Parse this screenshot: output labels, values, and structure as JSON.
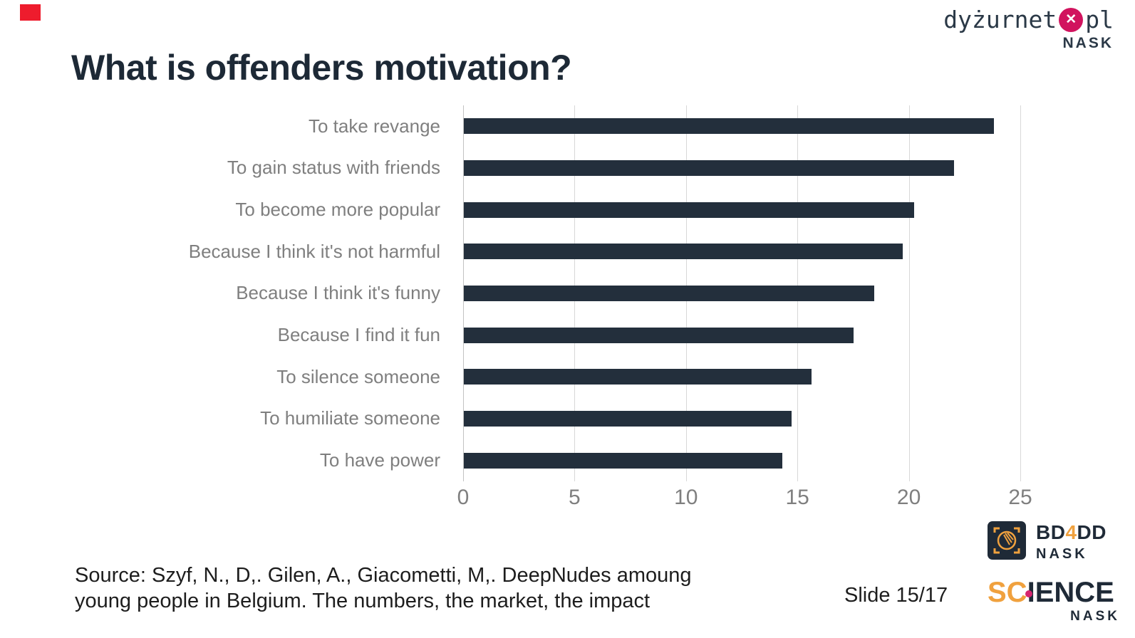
{
  "header": {
    "title": "What is offenders motivation?"
  },
  "logos": {
    "dyzurnet": {
      "name": "dyżurnet",
      "tld": "pl",
      "x_icon": "✕",
      "org": "NASK"
    },
    "bd4dd": {
      "p1": "BD",
      "accent": "4",
      "p2": "DD",
      "org": "NASK"
    },
    "science": {
      "p1": "SC",
      "p2": "IENCE",
      "org": "NASK"
    }
  },
  "chart_data": {
    "type": "bar",
    "orientation": "horizontal",
    "title": "What is offenders motivation?",
    "categories": [
      "To take revange",
      "To gain status with friends",
      "To become more popular",
      "Because I think it's not harmful",
      "Because I think it's funny",
      "Because I find it fun",
      "To silence someone",
      "To humiliate someone",
      "To have power"
    ],
    "values": [
      23.8,
      22,
      20.2,
      19.7,
      18.4,
      17.5,
      15.6,
      14.7,
      14.3
    ],
    "xlim": [
      0,
      25
    ],
    "xticks": [
      0,
      5,
      10,
      15,
      20,
      25
    ],
    "grid": true,
    "legend": false,
    "bar_color": "#232f3c",
    "category_label_color": "#7f7f7f",
    "tick_label_color": "#7f7f7f"
  },
  "footer": {
    "source_line1": "Source: Szyf, N., D,. Gilen, A., Giacometti, M,. DeepNudes amoung",
    "source_line2": "young people in Belgium. The numbers, the market, the impact",
    "slide_label": "Slide 15/17"
  },
  "colors": {
    "accent_navy": "#232f3c",
    "accent_orange": "#f0a13e",
    "accent_magenta": "#d1135e",
    "accent_pink_dot": "#d6246e",
    "marker_red": "#ee1c2d",
    "gridline": "#d8d8d8"
  }
}
